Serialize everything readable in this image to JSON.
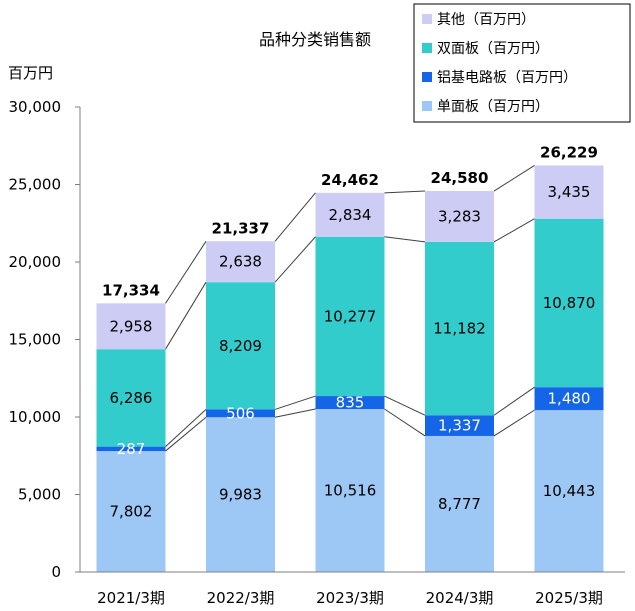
{
  "chart_data": {
    "type": "bar",
    "stacked": true,
    "title": "品种分类销售额",
    "ylabel": "百万円",
    "ylim": [
      0,
      30000
    ],
    "yticks": [
      "0",
      "5,000",
      "10,000",
      "15,000",
      "20,000",
      "25,000",
      "30,000"
    ],
    "ytick_values": [
      0,
      5000,
      10000,
      15000,
      20000,
      25000,
      30000
    ],
    "categories": [
      "2021/3期",
      "2022/3期",
      "2023/3期",
      "2024/3期",
      "2025/3期"
    ],
    "series": [
      {
        "name": "单面板（百万円）",
        "color": "#9dc8f5",
        "label_color": "#000000",
        "values": [
          7802,
          9983,
          10516,
          8777,
          10443
        ],
        "labels": [
          "7,802",
          "9,983",
          "10,516",
          "8,777",
          "10,443"
        ]
      },
      {
        "name": "铝基电路板（百万円）",
        "color": "#1565e8",
        "label_color": "#ffffff",
        "values": [
          287,
          506,
          835,
          1337,
          1480
        ],
        "labels": [
          "287",
          "506",
          "835",
          "1,337",
          "1,480"
        ]
      },
      {
        "name": "双面板（百万円）",
        "color": "#33cccc",
        "label_color": "#000000",
        "values": [
          6286,
          8209,
          10277,
          11182,
          10870
        ],
        "labels": [
          "6,286",
          "8,209",
          "10,277",
          "11,182",
          "10,870"
        ]
      },
      {
        "name": "其他（百万円）",
        "color": "#ccccf5",
        "label_color": "#000000",
        "values": [
          2958,
          2638,
          2834,
          3283,
          3435
        ],
        "labels": [
          "2,958",
          "2,638",
          "2,834",
          "3,283",
          "3,435"
        ]
      }
    ],
    "totals": [
      17334,
      21337,
      24462,
      24580,
      26229
    ],
    "total_labels": [
      "17,334",
      "21,337",
      "24,462",
      "24,580",
      "26,229"
    ],
    "legend_order": [
      3,
      2,
      1,
      0
    ],
    "legend_position": "top-right",
    "grid": false,
    "series_connector_lines": true
  }
}
